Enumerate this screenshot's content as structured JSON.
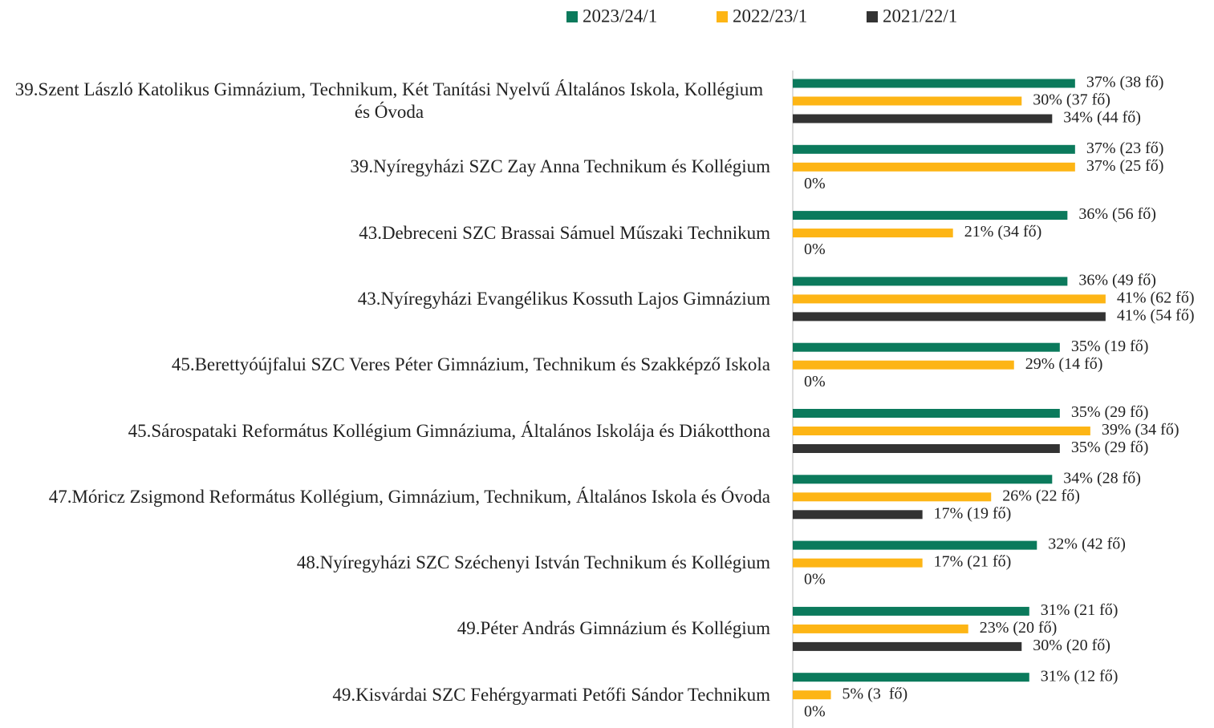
{
  "chart_data": {
    "type": "hbar",
    "categories": [
      "39.Szent László Katolikus Gimnázium, Technikum, Két Tanítási Nyelvű Általános Iskola, Kollégium és Óvoda",
      "39.Nyíregyházi SZC Zay Anna Technikum és Kollégium",
      "43.Debreceni SZC Brassai Sámuel Műszaki Technikum",
      "43.Nyíregyházi Evangélikus Kossuth Lajos Gimnázium",
      "45.Berettyóújfalui SZC Veres Péter Gimnázium, Technikum és Szakképző Iskola",
      "45.Sárospataki Református Kollégium Gimnáziuma, Általános Iskolája és Diákotthona",
      "47.Móricz Zsigmond Református Kollégium, Gimnázium, Technikum, Általános Iskola és Óvoda",
      "48.Nyíregyházi SZC Széchenyi István Technikum és Kollégium",
      "49.Péter András Gimnázium és Kollégium",
      "49.Kisvárdai SZC Fehérgyarmati Petőfi Sándor Technikum"
    ],
    "series": [
      {
        "name": "2023/24/1",
        "color": "#0b7a5c",
        "values": [
          37,
          37,
          36,
          36,
          35,
          35,
          34,
          32,
          31,
          31
        ],
        "value_labels": [
          "37% (38 fő)",
          "37% (23 fő)",
          "36% (56 fő)",
          "36% (49 fő)",
          "35% (19 fő)",
          "35% (29 fő)",
          "34% (28 fő)",
          "32% (42 fő)",
          "31% (21 fő)",
          "31% (12 fő)"
        ]
      },
      {
        "name": "2022/23/1",
        "color": "#fdb515",
        "values": [
          30,
          37,
          21,
          41,
          29,
          39,
          26,
          17,
          23,
          5
        ],
        "value_labels": [
          "30% (37 fő)",
          "37% (25 fő)",
          "21% (34 fő)",
          "41% (62 fő)",
          "29% (14 fő)",
          "39% (34 fő)",
          "26% (22 fő)",
          "17% (21 fő)",
          "23% (20 fő)",
          "5% (3  fő)"
        ]
      },
      {
        "name": "2021/22/1",
        "color": "#333333",
        "values": [
          34,
          0,
          0,
          41,
          0,
          35,
          17,
          0,
          30,
          0
        ],
        "value_labels": [
          "34% (44 fő)",
          "0%",
          "0%",
          "41% (54 fő)",
          "0%",
          "35% (29 fő)",
          "17% (19 fő)",
          "0%",
          "30% (20 fő)",
          "0%"
        ]
      }
    ],
    "xlim": [
      0,
      55
    ],
    "legend": "top"
  }
}
